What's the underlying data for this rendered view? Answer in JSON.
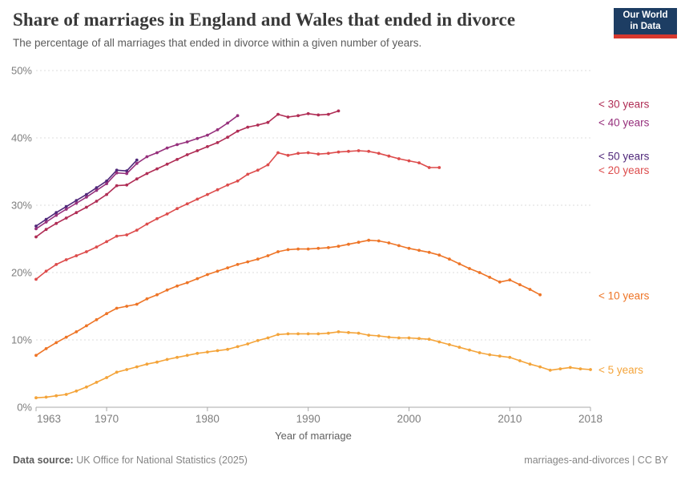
{
  "header": {
    "title": "Share of marriages in England and Wales that ended in divorce",
    "subtitle": "The percentage of all marriages that ended in divorce within a given number of years.",
    "logo": {
      "line1": "Our World",
      "line2": "in Data",
      "bg": "#1d3d63",
      "stripe": "#d7382e"
    }
  },
  "footer": {
    "source_label": "Data source:",
    "source": "UK Office for National Statistics (2025)",
    "note": "marriages-and-divorces | CC BY"
  },
  "chart_data": {
    "type": "line",
    "title": "Share of marriages in England and Wales that ended in divorce",
    "subtitle": "The percentage of all marriages that ended in divorce within a given number of years.",
    "xlabel": "Year of marriage",
    "ylabel": "",
    "x_range": [
      1963,
      2018
    ],
    "ylim": [
      0,
      50
    ],
    "y_ticks": [
      0,
      10,
      20,
      30,
      40,
      50
    ],
    "y_tick_suffix": "%",
    "x_ticks": [
      1963,
      1970,
      1980,
      1990,
      2000,
      2010,
      2018
    ],
    "grid": "horizontal-dashed",
    "legend_position": "right-end-of-lines",
    "series": [
      {
        "key": "lt50",
        "name": "< 50 years",
        "color": "#50287a",
        "start_year": 1963,
        "values": [
          26.9,
          27.9,
          28.9,
          29.8,
          30.7,
          31.6,
          32.6,
          33.6,
          35.2,
          35.1,
          36.7
        ]
      },
      {
        "key": "lt40",
        "name": "< 40 years",
        "color": "#96307c",
        "start_year": 1963,
        "values": [
          26.5,
          27.5,
          28.5,
          29.4,
          30.3,
          31.2,
          32.2,
          33.2,
          34.8,
          34.7,
          36.2,
          37.2,
          37.8,
          38.5,
          39.0,
          39.4,
          39.9,
          40.4,
          41.2,
          42.2,
          43.3
        ]
      },
      {
        "key": "lt30",
        "name": "< 30 years",
        "color": "#b02d55",
        "start_year": 1963,
        "values": [
          25.3,
          26.4,
          27.3,
          28.1,
          28.9,
          29.7,
          30.6,
          31.6,
          32.9,
          33.0,
          33.9,
          34.7,
          35.4,
          36.1,
          36.8,
          37.5,
          38.1,
          38.7,
          39.3,
          40.1,
          41.0,
          41.6,
          41.9,
          42.3,
          43.5,
          43.1,
          43.3,
          43.6,
          43.4,
          43.5,
          44.0
        ]
      },
      {
        "key": "lt20",
        "name": "< 20 years",
        "color": "#dd4c4c",
        "start_year": 1963,
        "values": [
          19.0,
          20.2,
          21.2,
          21.9,
          22.5,
          23.1,
          23.8,
          24.6,
          25.4,
          25.6,
          26.3,
          27.2,
          28.0,
          28.7,
          29.5,
          30.2,
          30.9,
          31.6,
          32.3,
          33.0,
          33.6,
          34.6,
          35.2,
          36.0,
          37.8,
          37.4,
          37.7,
          37.8,
          37.6,
          37.7,
          37.9,
          38.0,
          38.1,
          38.0,
          37.7,
          37.3,
          36.9,
          36.6,
          36.3,
          35.6,
          35.6
        ]
      },
      {
        "key": "lt10",
        "name": "< 10 years",
        "color": "#ee7527",
        "start_year": 1963,
        "values": [
          7.7,
          8.7,
          9.6,
          10.4,
          11.2,
          12.1,
          13.0,
          13.9,
          14.7,
          15.0,
          15.3,
          16.1,
          16.7,
          17.4,
          18.0,
          18.5,
          19.1,
          19.7,
          20.2,
          20.7,
          21.2,
          21.6,
          22.0,
          22.5,
          23.1,
          23.4,
          23.5,
          23.5,
          23.6,
          23.7,
          23.9,
          24.2,
          24.5,
          24.8,
          24.7,
          24.4,
          24.0,
          23.6,
          23.3,
          23.0,
          22.6,
          22.0,
          21.3,
          20.6,
          20.0,
          19.3,
          18.6,
          18.9,
          18.2,
          17.5,
          16.7
        ]
      },
      {
        "key": "lt5",
        "name": "< 5 years",
        "color": "#f4a43a",
        "start_year": 1963,
        "values": [
          1.4,
          1.5,
          1.7,
          1.9,
          2.4,
          3.0,
          3.7,
          4.4,
          5.2,
          5.6,
          6.0,
          6.4,
          6.7,
          7.1,
          7.4,
          7.7,
          8.0,
          8.2,
          8.4,
          8.6,
          9.0,
          9.4,
          9.9,
          10.3,
          10.8,
          10.9,
          10.9,
          10.9,
          10.9,
          11.0,
          11.2,
          11.1,
          11.0,
          10.7,
          10.6,
          10.4,
          10.3,
          10.3,
          10.2,
          10.1,
          9.7,
          9.3,
          8.9,
          8.5,
          8.1,
          7.8,
          7.6,
          7.4,
          6.9,
          6.4,
          6.0,
          5.5,
          5.7,
          5.9,
          5.7,
          5.6
        ]
      }
    ]
  }
}
